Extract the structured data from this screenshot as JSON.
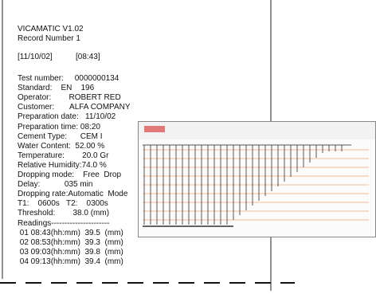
{
  "header": {
    "title": "VICAMATIC V1.02",
    "record": "Record Number 1",
    "date": "[11/10/02]",
    "time": "[08:43]"
  },
  "fields": [
    "Test number:     0000000134",
    "Standard:    EN    196",
    "Operator:        ROBERT RED",
    "Customer:       ALFA COMPANY",
    "Preparation date:   11/10/02",
    "Preparation time: 08:20",
    "Cement Type:      CEM I",
    "Water Content:  52.00 %",
    "Temperature:        20.0 Gr",
    "Relative Humidity:74.0 %",
    "Dropping mode:    Free  Drop",
    "Delay:           035 min",
    "Dropping rate:Automatic  Mode",
    "T1:    0600s   T2:    0300s",
    "Threshold:        38.0 (mm)",
    "Readings----------------------",
    " 01 08:43(hh:mm)  39.5  (mm)",
    " 02 08:53(hh:mm)  39.3  (mm)",
    " 03 09:03(hh:mm)  39.8  (mm)",
    " 04 09:13(hh:mm)  39.4  (mm)"
  ]
}
